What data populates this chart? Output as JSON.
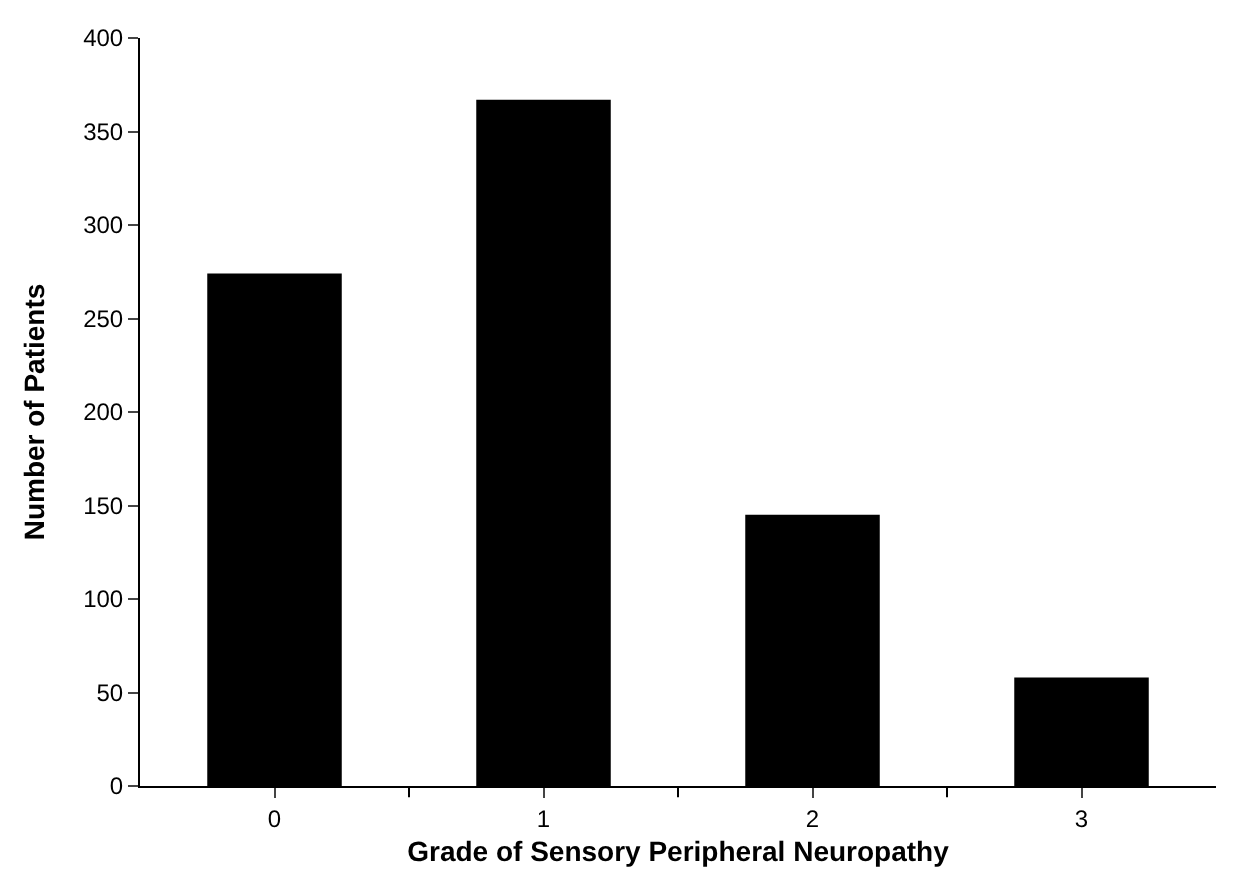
{
  "chart_data": {
    "type": "bar",
    "xlabel": "Grade of Sensory Peripheral Neuropathy",
    "ylabel": "Number of Patients",
    "categories": [
      "0",
      "1",
      "2",
      "3"
    ],
    "values": [
      274,
      367,
      145,
      58
    ],
    "color": "#000000",
    "ylim": [
      0,
      400
    ],
    "yticks": [
      0,
      50,
      100,
      150,
      200,
      250,
      300,
      350,
      400
    ]
  }
}
